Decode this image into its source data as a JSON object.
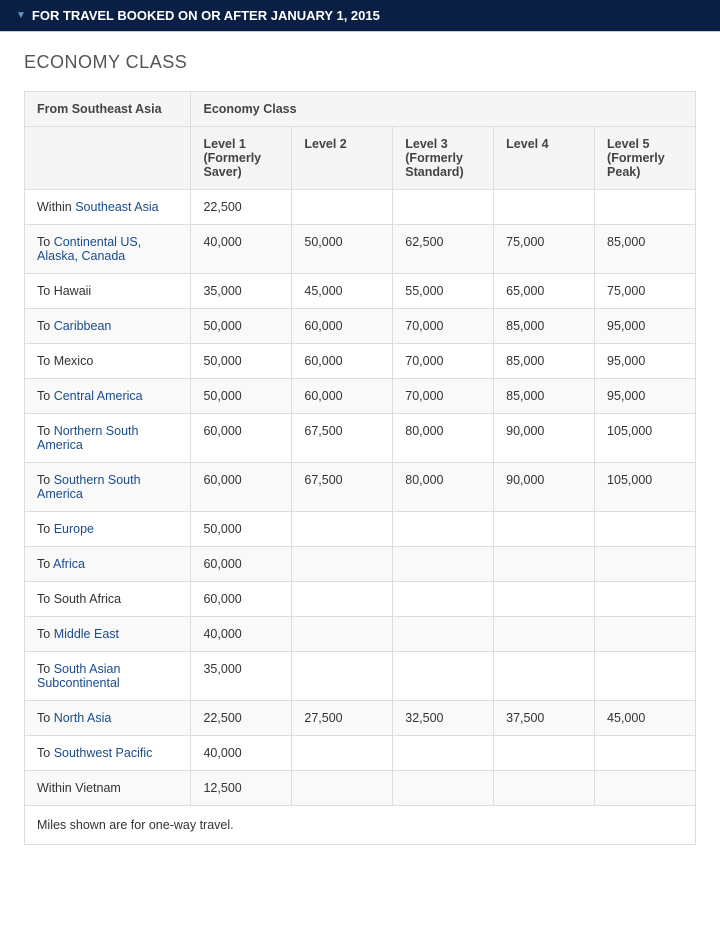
{
  "header": {
    "title": "FOR TRAVEL BOOKED ON OR AFTER JANUARY 1, 2015"
  },
  "section": {
    "title": "ECONOMY CLASS"
  },
  "table": {
    "topHeader": {
      "left": "From Southeast Asia",
      "right": "Economy Class"
    },
    "columns": [
      "",
      "Level 1 (Formerly Saver)",
      "Level 2",
      "Level 3 (Formerly Standard)",
      "Level 4",
      "Level 5 (Formerly Peak)"
    ],
    "rows": [
      {
        "prefix": "Within ",
        "dest": "Southeast Asia",
        "link": true,
        "v": [
          "22,500",
          "",
          "",
          "",
          ""
        ]
      },
      {
        "prefix": "To ",
        "dest": "Continental US, Alaska, Canada",
        "link": true,
        "v": [
          "40,000",
          "50,000",
          "62,500",
          "75,000",
          "85,000"
        ]
      },
      {
        "prefix": "To ",
        "dest": "Hawaii",
        "link": false,
        "v": [
          "35,000",
          "45,000",
          "55,000",
          "65,000",
          "75,000"
        ]
      },
      {
        "prefix": "To ",
        "dest": "Caribbean",
        "link": true,
        "v": [
          "50,000",
          "60,000",
          "70,000",
          "85,000",
          "95,000"
        ]
      },
      {
        "prefix": "To ",
        "dest": "Mexico",
        "link": false,
        "v": [
          "50,000",
          "60,000",
          "70,000",
          "85,000",
          "95,000"
        ]
      },
      {
        "prefix": "To ",
        "dest": "Central America",
        "link": true,
        "v": [
          "50,000",
          "60,000",
          "70,000",
          "85,000",
          "95,000"
        ]
      },
      {
        "prefix": "To ",
        "dest": "Northern South America",
        "link": true,
        "v": [
          "60,000",
          "67,500",
          "80,000",
          "90,000",
          "105,000"
        ]
      },
      {
        "prefix": "To ",
        "dest": "Southern South America",
        "link": true,
        "v": [
          "60,000",
          "67,500",
          "80,000",
          "90,000",
          "105,000"
        ]
      },
      {
        "prefix": "To ",
        "dest": "Europe",
        "link": true,
        "v": [
          "50,000",
          "",
          "",
          "",
          ""
        ]
      },
      {
        "prefix": "To ",
        "dest": "Africa",
        "link": true,
        "v": [
          "60,000",
          "",
          "",
          "",
          ""
        ]
      },
      {
        "prefix": "To ",
        "dest": "South Africa",
        "link": false,
        "v": [
          "60,000",
          "",
          "",
          "",
          ""
        ]
      },
      {
        "prefix": "To ",
        "dest": "Middle East",
        "link": true,
        "v": [
          "40,000",
          "",
          "",
          "",
          ""
        ]
      },
      {
        "prefix": "To ",
        "dest": "South Asian Subcontinental",
        "link": true,
        "v": [
          "35,000",
          "",
          "",
          "",
          ""
        ]
      },
      {
        "prefix": "To ",
        "dest": "North Asia",
        "link": true,
        "v": [
          "22,500",
          "27,500",
          "32,500",
          "37,500",
          "45,000"
        ]
      },
      {
        "prefix": "To ",
        "dest": "Southwest Pacific",
        "link": true,
        "v": [
          "40,000",
          "",
          "",
          "",
          ""
        ]
      },
      {
        "prefix": "Within ",
        "dest": "Vietnam",
        "link": false,
        "v": [
          "12,500",
          "",
          "",
          "",
          ""
        ]
      }
    ],
    "footnote": "Miles shown are for one-way travel."
  }
}
